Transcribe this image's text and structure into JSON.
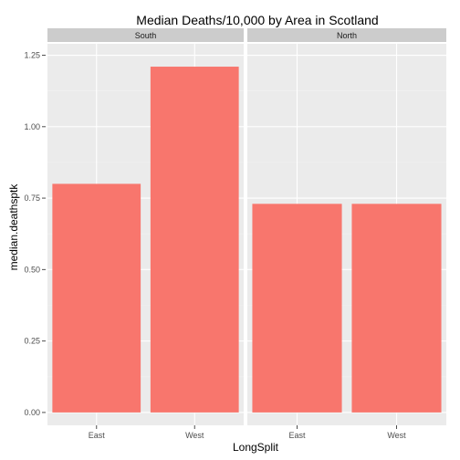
{
  "chart_data": {
    "type": "bar",
    "title": "Median Deaths/10,000 by Area in Scotland",
    "xlabel": "LongSplit",
    "ylabel": "median.deathsptk",
    "ylim": [
      -0.045,
      1.29
    ],
    "yticks": [
      "0.00",
      "0.25",
      "0.50",
      "0.75",
      "1.00",
      "1.25"
    ],
    "ytick_values": [
      0,
      0.25,
      0.5,
      0.75,
      1.0,
      1.25
    ],
    "grid": true,
    "facets": [
      {
        "name": "South",
        "categories": [
          "East",
          "West"
        ],
        "values": [
          0.8,
          1.21
        ]
      },
      {
        "name": "North",
        "categories": [
          "East",
          "West"
        ],
        "values": [
          0.73,
          0.73
        ]
      }
    ],
    "colors": {
      "bar": "#f8766d",
      "panel": "#ebebeb",
      "grid_major": "#ffffff",
      "grid_minor": "#f2f2f2",
      "strip": "#cccccc"
    }
  }
}
